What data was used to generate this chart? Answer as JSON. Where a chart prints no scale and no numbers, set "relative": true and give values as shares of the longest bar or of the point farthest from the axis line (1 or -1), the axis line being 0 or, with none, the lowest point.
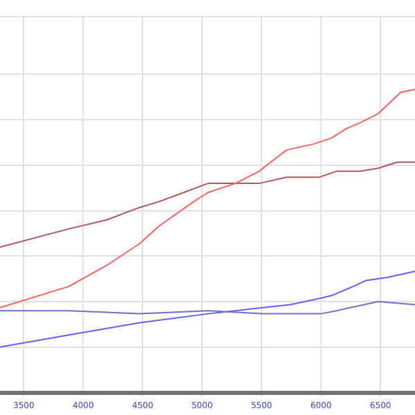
{
  "chart_data": {
    "type": "line",
    "relative": true,
    "xlim": [
      3300,
      6790
    ],
    "xticks": [
      3500,
      4000,
      4500,
      5000,
      5500,
      6000,
      6500
    ],
    "grid": true,
    "legend": false,
    "marker": "none",
    "line_style": "solid",
    "series": [
      {
        "color": "#ff6060",
        "x": [
          3300,
          3880,
          4200,
          4470,
          4640,
          4930,
          5050,
          5280,
          5480,
          5710,
          5940,
          6090,
          6210,
          6330,
          6480,
          6670,
          6790
        ],
        "values": [
          0.28,
          0.35,
          0.42,
          0.49,
          0.55,
          0.63,
          0.66,
          0.69,
          0.73,
          0.8,
          0.82,
          0.84,
          0.87,
          0.89,
          0.92,
          0.99,
          1
        ]
      },
      {
        "color": "#b05858",
        "x": [
          3300,
          3880,
          4200,
          4470,
          4640,
          5050,
          5480,
          5710,
          5980,
          6130,
          6330,
          6480,
          6640,
          6790
        ],
        "values": [
          0.48,
          0.54,
          0.57,
          0.61,
          0.63,
          0.69,
          0.69,
          0.71,
          0.71,
          0.73,
          0.73,
          0.74,
          0.76,
          0.76
        ]
      },
      {
        "color": "#7070c8",
        "x": [
          3300,
          3880,
          4470,
          5050,
          5510,
          6000,
          6130,
          6360,
          6480,
          6790
        ],
        "values": [
          0.27,
          0.27,
          0.26,
          0.27,
          0.26,
          0.26,
          0.27,
          0.29,
          0.3,
          0.29
        ]
      },
      {
        "color": "#6060ff",
        "x": [
          3300,
          3880,
          4470,
          5050,
          5280,
          5510,
          5740,
          5980,
          6090,
          6270,
          6380,
          6560,
          6790
        ],
        "values": [
          0.15,
          0.19,
          0.23,
          0.26,
          0.27,
          0.28,
          0.29,
          0.31,
          0.32,
          0.35,
          0.37,
          0.38,
          0.4
        ]
      }
    ]
  }
}
